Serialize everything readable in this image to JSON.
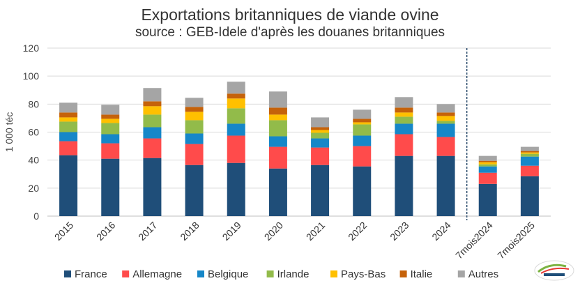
{
  "chart_data": {
    "type": "bar",
    "stacked": true,
    "title": "Exportations britanniques de viande ovine",
    "subtitle": "source : GEB-Idele d'après les douanes britanniques",
    "ylabel": "1 000 téc",
    "xlabel": "",
    "ylim": [
      0,
      120
    ],
    "yticks": [
      0,
      20,
      40,
      60,
      80,
      100,
      120
    ],
    "grid": true,
    "legend_position": "bottom",
    "categories": [
      "2015",
      "2016",
      "2017",
      "2018",
      "2019",
      "2020",
      "2021",
      "2022",
      "2023",
      "2024",
      "7mois2024",
      "7mois2025"
    ],
    "separator_after_category": "2024",
    "series": [
      {
        "name": "France",
        "color": "#1f4e79",
        "values": [
          43.5,
          41,
          41.5,
          36.5,
          38,
          34,
          36.5,
          35.5,
          43,
          43,
          23,
          28.5
        ]
      },
      {
        "name": "Allemagne",
        "color": "#ff4b4b",
        "values": [
          10,
          11,
          14,
          15,
          19.5,
          15.5,
          12.5,
          14.5,
          15.5,
          13.5,
          8,
          7.5
        ]
      },
      {
        "name": "Belgique",
        "color": "#1687c8",
        "values": [
          6.5,
          6.5,
          8,
          7.5,
          8.5,
          7.5,
          6.5,
          7.5,
          7.5,
          9.5,
          4.5,
          6.5
        ]
      },
      {
        "name": "Irlande",
        "color": "#92bb4a",
        "values": [
          7.5,
          8,
          9,
          9.5,
          11,
          11.5,
          4,
          8,
          5,
          2,
          1.5,
          2
        ]
      },
      {
        "name": "Pays-Bas",
        "color": "#ffc000",
        "values": [
          3,
          3,
          6,
          6,
          7,
          4,
          2,
          1.5,
          3,
          3.5,
          1.5,
          1
        ]
      },
      {
        "name": "Italie",
        "color": "#c5620a",
        "values": [
          3.5,
          3,
          3.5,
          3.5,
          3.5,
          5,
          2,
          2.5,
          3.5,
          2.5,
          1,
          1
        ]
      },
      {
        "name": "Autres",
        "color": "#a5a5a5",
        "values": [
          7,
          7,
          9.5,
          6.5,
          8.5,
          11.5,
          7,
          6.5,
          7.5,
          6,
          3.5,
          3
        ]
      }
    ]
  }
}
